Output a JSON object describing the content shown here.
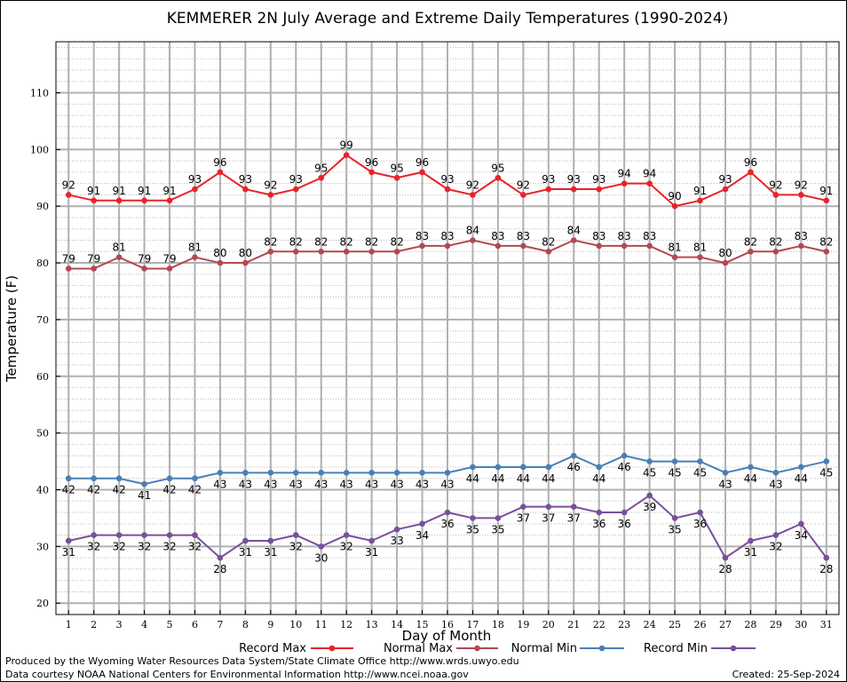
{
  "chart_data": {
    "type": "line",
    "title": "KEMMERER 2N July Average and Extreme Daily Temperatures (1990-2024)",
    "xlabel": "Day of Month",
    "ylabel": "Temperature (F)",
    "x": [
      1,
      2,
      3,
      4,
      5,
      6,
      7,
      8,
      9,
      10,
      11,
      12,
      13,
      14,
      15,
      16,
      17,
      18,
      19,
      20,
      21,
      22,
      23,
      24,
      25,
      26,
      27,
      28,
      29,
      30,
      31
    ],
    "xlim": [
      0.5,
      31.5
    ],
    "ylim": [
      18,
      119
    ],
    "yticks": [
      20,
      30,
      40,
      50,
      60,
      70,
      80,
      90,
      100,
      110
    ],
    "grid": true,
    "legend_placement": "bottom",
    "series": [
      {
        "name": "Record Max",
        "color": "#e8222a",
        "values": [
          92,
          91,
          91,
          91,
          91,
          93,
          96,
          93,
          92,
          93,
          95,
          99,
          96,
          95,
          96,
          93,
          92,
          95,
          92,
          93,
          93,
          93,
          94,
          94,
          90,
          91,
          93,
          96,
          92,
          92,
          91
        ],
        "label_position": "above"
      },
      {
        "name": "Normal Max",
        "color": "#b24a4f",
        "values": [
          79,
          79,
          81,
          79,
          79,
          81,
          80,
          80,
          82,
          82,
          82,
          82,
          82,
          82,
          83,
          83,
          84,
          83,
          83,
          82,
          84,
          83,
          83,
          83,
          81,
          81,
          80,
          82,
          82,
          83,
          82
        ],
        "label_position": "above"
      },
      {
        "name": "Normal Min",
        "color": "#4a7fb4",
        "values": [
          42,
          42,
          42,
          41,
          42,
          42,
          43,
          43,
          43,
          43,
          43,
          43,
          43,
          43,
          43,
          43,
          44,
          44,
          44,
          44,
          46,
          44,
          46,
          45,
          45,
          45,
          43,
          44,
          43,
          44,
          45
        ],
        "label_position": "below"
      },
      {
        "name": "Record Min",
        "color": "#7a4f9a",
        "values": [
          31,
          32,
          32,
          32,
          32,
          32,
          28,
          31,
          31,
          32,
          30,
          32,
          31,
          33,
          34,
          36,
          35,
          35,
          37,
          37,
          37,
          36,
          36,
          39,
          35,
          36,
          28,
          31,
          32,
          34,
          28
        ],
        "label_position": "below"
      }
    ]
  },
  "footer": {
    "produced_by": "Produced by the Wyoming Water Resources Data System/State Climate Office http://www.wrds.uwyo.edu",
    "courtesy": "Data courtesy NOAA National Centers for Environmental Information http://www.ncei.noaa.gov",
    "created": "Created:  25-Sep-2024"
  }
}
